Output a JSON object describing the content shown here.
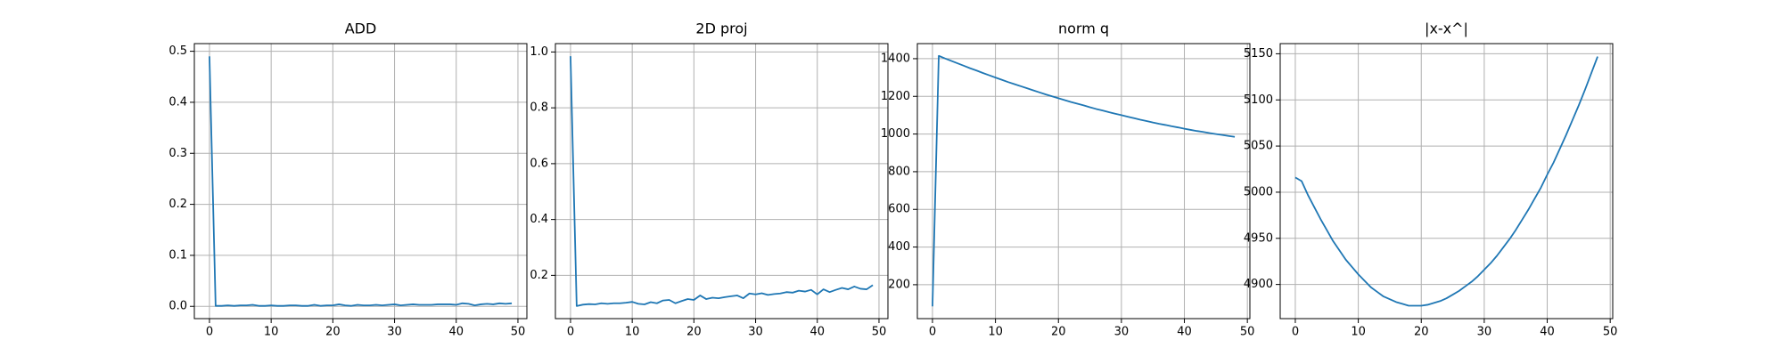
{
  "chart_data": [
    {
      "type": "line",
      "title": "ADD",
      "color": "#1f77b4",
      "grid": true,
      "x": [
        0,
        1,
        2,
        3,
        4,
        5,
        6,
        7,
        8,
        9,
        10,
        11,
        12,
        13,
        14,
        15,
        16,
        17,
        18,
        19,
        20,
        21,
        22,
        23,
        24,
        25,
        26,
        27,
        28,
        29,
        30,
        31,
        32,
        33,
        34,
        35,
        36,
        37,
        38,
        39,
        40,
        41,
        42,
        43,
        44,
        45,
        46,
        47,
        48,
        49
      ],
      "values": [
        0.49,
        0.001,
        0.001,
        0.002,
        0.001,
        0.002,
        0.002,
        0.003,
        0.001,
        0.001,
        0.002,
        0.001,
        0.001,
        0.002,
        0.002,
        0.001,
        0.001,
        0.003,
        0.001,
        0.002,
        0.002,
        0.004,
        0.002,
        0.001,
        0.003,
        0.002,
        0.002,
        0.003,
        0.002,
        0.003,
        0.004,
        0.002,
        0.003,
        0.004,
        0.003,
        0.003,
        0.003,
        0.004,
        0.004,
        0.004,
        0.003,
        0.006,
        0.005,
        0.002,
        0.004,
        0.005,
        0.004,
        0.006,
        0.005,
        0.006
      ],
      "xlim": [
        -2.45,
        51.45
      ],
      "xticks": [
        0,
        10,
        20,
        30,
        40,
        50
      ],
      "ylim": [
        -0.024,
        0.515
      ],
      "yticks": [
        {
          "value": 0,
          "label": "0.0"
        },
        {
          "value": 0.1,
          "label": "0.1"
        },
        {
          "value": 0.2,
          "label": "0.2"
        },
        {
          "value": 0.3,
          "label": "0.3"
        },
        {
          "value": 0.4,
          "label": "0.4"
        },
        {
          "value": 0.5,
          "label": "0.5"
        }
      ]
    },
    {
      "type": "line",
      "title": "2D proj",
      "color": "#1f77b4",
      "grid": true,
      "x": [
        0,
        1,
        2,
        3,
        4,
        5,
        6,
        7,
        8,
        9,
        10,
        11,
        12,
        13,
        14,
        15,
        16,
        17,
        18,
        19,
        20,
        21,
        22,
        23,
        24,
        25,
        26,
        27,
        28,
        29,
        30,
        31,
        32,
        33,
        34,
        35,
        36,
        37,
        38,
        39,
        40,
        41,
        42,
        43,
        44,
        45,
        46,
        47,
        48,
        49
      ],
      "values": [
        0.985,
        0.09,
        0.095,
        0.097,
        0.096,
        0.1,
        0.098,
        0.1,
        0.1,
        0.102,
        0.105,
        0.098,
        0.096,
        0.104,
        0.1,
        0.11,
        0.112,
        0.1,
        0.108,
        0.115,
        0.112,
        0.128,
        0.115,
        0.12,
        0.118,
        0.122,
        0.125,
        0.128,
        0.118,
        0.135,
        0.132,
        0.136,
        0.13,
        0.133,
        0.135,
        0.14,
        0.138,
        0.145,
        0.142,
        0.148,
        0.132,
        0.15,
        0.14,
        0.148,
        0.155,
        0.15,
        0.16,
        0.152,
        0.15,
        0.165
      ],
      "xlim": [
        -2.45,
        51.45
      ],
      "xticks": [
        0,
        10,
        20,
        30,
        40,
        50
      ],
      "ylim": [
        0.045,
        1.03
      ],
      "yticks": [
        0.2,
        0.4,
        0.6,
        0.8,
        {
          "value": 1,
          "label": "1.0"
        }
      ]
    },
    {
      "type": "line",
      "title": "norm q",
      "color": "#1f77b4",
      "grid": true,
      "x": [
        0,
        1,
        2,
        3,
        4,
        5,
        6,
        7,
        8,
        9,
        10,
        11,
        12,
        13,
        14,
        15,
        16,
        17,
        18,
        19,
        20,
        21,
        22,
        23,
        24,
        25,
        26,
        27,
        28,
        29,
        30,
        31,
        32,
        33,
        34,
        35,
        36,
        37,
        38,
        39,
        40,
        41,
        42,
        43,
        44,
        45,
        46,
        47,
        48
      ],
      "values": [
        85,
        1415,
        1401,
        1388,
        1375,
        1362,
        1349,
        1337,
        1324,
        1312,
        1300,
        1288,
        1276,
        1265,
        1254,
        1243,
        1232,
        1221,
        1210,
        1200,
        1190,
        1180,
        1170,
        1161,
        1152,
        1142,
        1133,
        1125,
        1116,
        1108,
        1100,
        1092,
        1084,
        1076,
        1069,
        1061,
        1054,
        1048,
        1041,
        1035,
        1028,
        1022,
        1016,
        1011,
        1005,
        1000,
        995,
        990,
        985
      ],
      "xlim": [
        -2.4,
        50.4
      ],
      "xticks": [
        0,
        10,
        20,
        30,
        40,
        50
      ],
      "ylim": [
        20,
        1480
      ],
      "yticks": [
        200,
        400,
        600,
        800,
        1000,
        1200,
        1400
      ]
    },
    {
      "type": "line",
      "title": "|x-x^|",
      "color": "#1f77b4",
      "grid": true,
      "x": [
        0,
        1,
        2,
        3,
        4,
        5,
        6,
        7,
        8,
        9,
        10,
        11,
        12,
        13,
        14,
        15,
        16,
        17,
        18,
        19,
        20,
        21,
        22,
        23,
        24,
        25,
        26,
        27,
        28,
        29,
        30,
        31,
        32,
        33,
        34,
        35,
        36,
        37,
        38,
        39,
        40,
        41,
        42,
        43,
        44,
        45,
        46,
        47,
        48
      ],
      "values": [
        5016,
        5012,
        4997,
        4984,
        4971,
        4959,
        4947,
        4937,
        4927,
        4919,
        4911,
        4904,
        4897,
        4892,
        4887,
        4884,
        4881,
        4879,
        4877,
        4877,
        4877,
        4878,
        4880,
        4882,
        4885,
        4889,
        4893,
        4898,
        4903,
        4909,
        4916,
        4923,
        4931,
        4940,
        4949,
        4959,
        4970,
        4981,
        4993,
        5005,
        5019,
        5032,
        5047,
        5062,
        5078,
        5094,
        5111,
        5129,
        5147
      ],
      "xlim": [
        -2.4,
        50.4
      ],
      "xticks": [
        0,
        10,
        20,
        30,
        40,
        50
      ],
      "ylim": [
        4863,
        5161
      ],
      "yticks": [
        4900,
        4950,
        5000,
        5050,
        5100,
        5150
      ]
    }
  ]
}
